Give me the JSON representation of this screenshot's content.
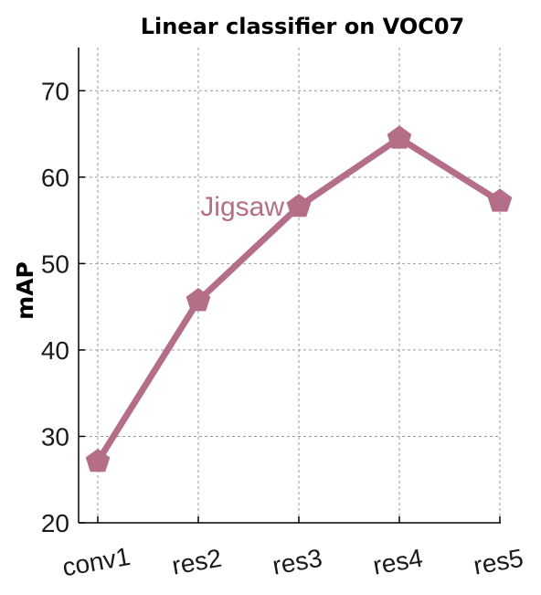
{
  "chart_data": {
    "type": "line",
    "title": "Linear classifier on VOC07",
    "xlabel": "",
    "ylabel": "mAP",
    "categories": [
      "conv1",
      "res2",
      "res3",
      "res4",
      "res5"
    ],
    "ylim": [
      20,
      75
    ],
    "yticks": [
      20,
      30,
      40,
      50,
      60,
      70
    ],
    "grid": true,
    "series": [
      {
        "name": "Jigsaw",
        "values": [
          27.1,
          45.7,
          56.6,
          64.5,
          57.2
        ],
        "color": "#b46e87",
        "marker": "pentagon"
      }
    ]
  }
}
